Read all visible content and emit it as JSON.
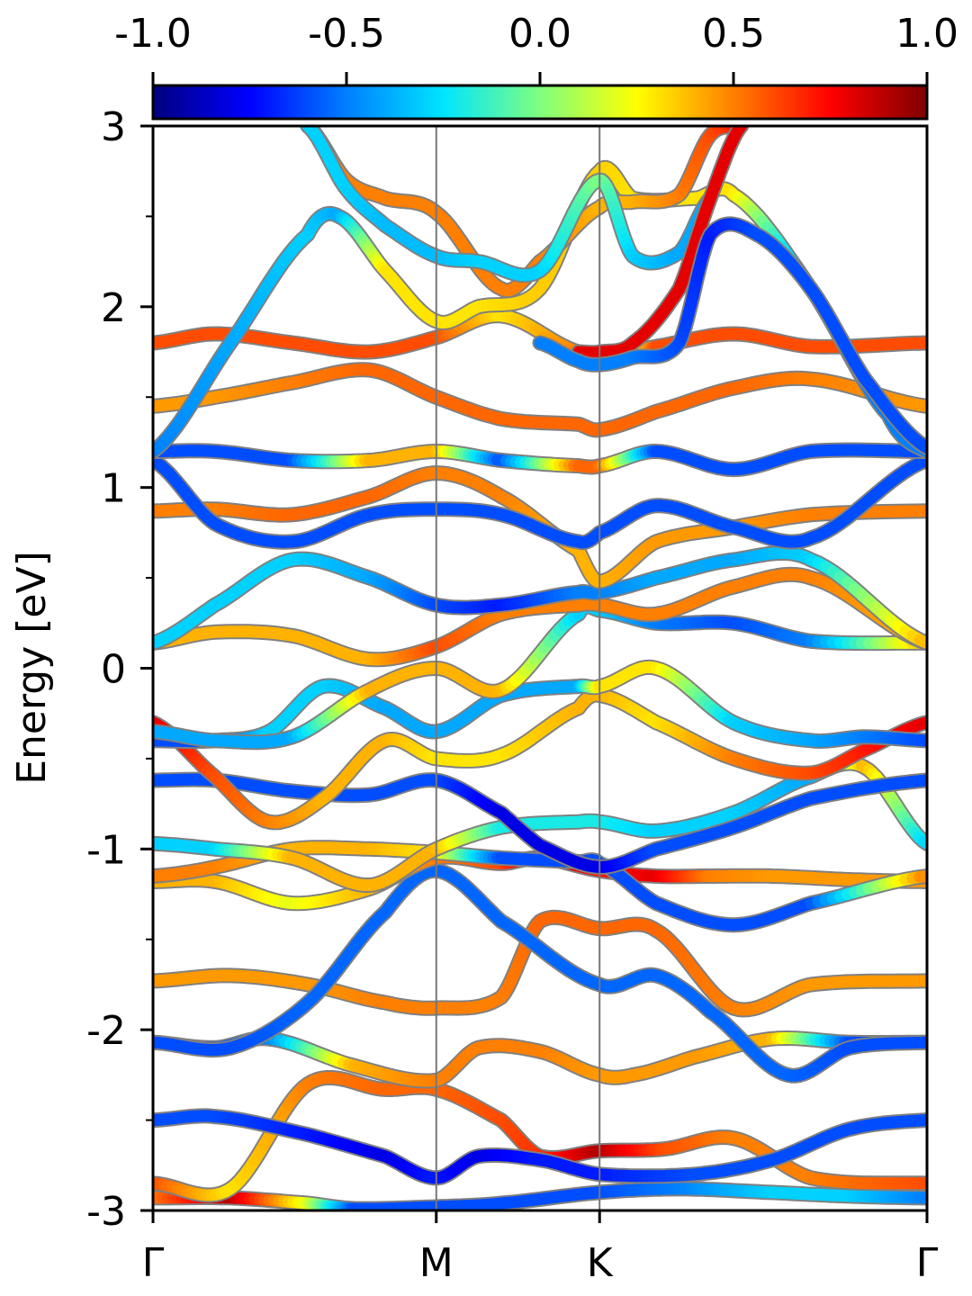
{
  "chart_data": {
    "type": "line",
    "ylabel": "Energy [eV]",
    "xlabel": "",
    "ylim": [
      -3,
      3
    ],
    "yticks": [
      {
        "value": 3,
        "label": "3"
      },
      {
        "value": 2,
        "label": "2"
      },
      {
        "value": 1,
        "label": "1"
      },
      {
        "value": 0,
        "label": "0"
      },
      {
        "value": -1,
        "label": "-1"
      },
      {
        "value": -2,
        "label": "-2"
      },
      {
        "value": -3,
        "label": "-3"
      }
    ],
    "kpath": [
      {
        "label": "Γ",
        "pos": 0.0
      },
      {
        "label": "M",
        "pos": 0.366
      },
      {
        "label": "K",
        "pos": 0.577
      },
      {
        "label": "Γ",
        "pos": 1.0
      }
    ],
    "colorbar": {
      "colormap": "jet",
      "range": [
        -1.0,
        1.0
      ],
      "ticks": [
        {
          "value": -1.0,
          "label": "-1.0"
        },
        {
          "value": -0.5,
          "label": "-0.5"
        },
        {
          "value": 0.0,
          "label": "0.0"
        },
        {
          "value": 0.5,
          "label": "0.5"
        },
        {
          "value": 1.0,
          "label": "1.0"
        }
      ],
      "stops": [
        "#00007f",
        "#0000ff",
        "#007fff",
        "#00e5ff",
        "#7fff7f",
        "#ffff00",
        "#ff7f00",
        "#ff0000",
        "#7f0000"
      ]
    },
    "series": [
      {
        "x": [
          0,
          0.1,
          0.2,
          0.26,
          0.366,
          0.45,
          0.577,
          0.68,
          0.8,
          0.9,
          1.0
        ],
        "y": [
          -2.93,
          -2.93,
          -2.96,
          -2.99,
          -2.98,
          -2.96,
          -2.9,
          -2.88,
          -2.9,
          -2.92,
          -2.93
        ],
        "w": [
          0.5,
          0.9,
          0.2,
          -0.6,
          -0.6,
          -0.6,
          -0.6,
          -0.5,
          -0.3,
          -0.3,
          -0.5
        ]
      },
      {
        "x": [
          0,
          0.1,
          0.2,
          0.3,
          0.366,
          0.45,
          0.5,
          0.577,
          0.66,
          0.75,
          0.85,
          1.0
        ],
        "y": [
          -2.85,
          -2.88,
          -2.3,
          -2.33,
          -2.33,
          -2.5,
          -2.7,
          -2.67,
          -2.66,
          -2.6,
          -2.82,
          -2.85
        ],
        "w": [
          0.6,
          0.3,
          0.5,
          0.55,
          0.55,
          0.6,
          0.65,
          0.9,
          0.6,
          0.5,
          0.5,
          0.6
        ]
      },
      {
        "x": [
          0,
          0.08,
          0.2,
          0.3,
          0.366,
          0.42,
          0.5,
          0.577,
          0.7,
          0.8,
          0.9,
          1.0
        ],
        "y": [
          -2.5,
          -2.48,
          -2.58,
          -2.7,
          -2.82,
          -2.7,
          -2.72,
          -2.8,
          -2.8,
          -2.72,
          -2.55,
          -2.5
        ],
        "w": [
          -0.6,
          -0.6,
          -0.7,
          -0.8,
          -0.7,
          -0.8,
          -0.7,
          -0.7,
          -0.6,
          -0.6,
          -0.6,
          -0.6
        ]
      },
      {
        "x": [
          0,
          0.08,
          0.15,
          0.26,
          0.366,
          0.42,
          0.5,
          0.577,
          0.62,
          0.7,
          0.8,
          0.9,
          1.0
        ],
        "y": [
          -2.07,
          -2.1,
          -2.05,
          -2.2,
          -2.28,
          -2.1,
          -2.12,
          -2.25,
          -2.25,
          -2.15,
          -2.05,
          -2.07,
          -2.07
        ],
        "w": [
          -0.6,
          -0.6,
          -0.5,
          0.4,
          0.5,
          0.5,
          0.5,
          0.45,
          0.45,
          0.45,
          0.4,
          -0.6,
          -0.6
        ]
      },
      {
        "x": [
          0,
          0.1,
          0.2,
          0.3,
          0.366,
          0.45,
          0.5,
          0.577,
          0.65,
          0.75,
          0.85,
          1.0
        ],
        "y": [
          -1.73,
          -1.7,
          -1.75,
          -1.85,
          -1.88,
          -1.82,
          -1.4,
          -1.44,
          -1.45,
          -1.88,
          -1.75,
          -1.73
        ],
        "w": [
          0.45,
          0.45,
          0.45,
          0.5,
          0.5,
          0.5,
          0.55,
          0.55,
          0.55,
          0.5,
          0.45,
          0.45
        ]
      },
      {
        "x": [
          0,
          0.1,
          0.2,
          0.3,
          0.366,
          0.45,
          0.577,
          0.65,
          0.72,
          0.82,
          0.9,
          1.0
        ],
        "y": [
          -2.07,
          -2.1,
          -1.85,
          -1.35,
          -1.12,
          -1.4,
          -1.75,
          -1.7,
          -1.9,
          -2.25,
          -2.1,
          -2.07
        ],
        "w": [
          -0.6,
          -0.6,
          -0.55,
          -0.55,
          -0.55,
          -0.55,
          -0.55,
          -0.55,
          -0.55,
          -0.55,
          -0.6,
          -0.6
        ]
      },
      {
        "x": [
          0,
          0.08,
          0.18,
          0.28,
          0.366,
          0.45,
          0.5,
          0.577,
          0.65,
          0.72,
          0.8,
          0.9,
          1.0
        ],
        "y": [
          -1.18,
          -1.18,
          -1.3,
          -1.22,
          -1.05,
          -1.08,
          -1.05,
          -1.12,
          -1.15,
          -1.15,
          -1.15,
          -1.17,
          -1.18
        ],
        "w": [
          0.4,
          0.4,
          0.2,
          0.4,
          0.5,
          0.6,
          0.9,
          0.7,
          0.8,
          0.5,
          0.45,
          0.45,
          0.45
        ]
      },
      {
        "x": [
          0,
          0.08,
          0.18,
          0.28,
          0.366,
          0.45,
          0.55,
          0.577,
          0.65,
          0.75,
          0.85,
          1.0
        ],
        "y": [
          -1.15,
          -1.1,
          -1.0,
          -1.0,
          -1.02,
          -1.05,
          -1.07,
          -1.08,
          -1.3,
          -1.42,
          -1.3,
          -1.15
        ],
        "w": [
          0.5,
          0.5,
          0.4,
          0.4,
          0.3,
          -0.6,
          -0.6,
          -0.6,
          -0.6,
          -0.6,
          -0.6,
          0.5
        ]
      },
      {
        "x": [
          0,
          0.08,
          0.18,
          0.28,
          0.366,
          0.45,
          0.55,
          0.577,
          0.65,
          0.75,
          0.85,
          0.92,
          1.0
        ],
        "y": [
          -0.97,
          -1.0,
          -1.05,
          -1.2,
          -1.0,
          -0.88,
          -0.85,
          -0.85,
          -0.9,
          -0.8,
          -0.6,
          -0.55,
          -0.97
        ],
        "w": [
          -0.3,
          -0.3,
          0.4,
          0.4,
          0.4,
          -0.2,
          -0.2,
          -0.2,
          -0.3,
          -0.3,
          -0.4,
          0.4,
          -0.3
        ]
      },
      {
        "x": [
          0,
          0.08,
          0.18,
          0.28,
          0.366,
          0.45,
          0.5,
          0.577,
          0.65,
          0.75,
          0.85,
          1.0
        ],
        "y": [
          -0.62,
          -0.62,
          -0.68,
          -0.7,
          -0.62,
          -0.8,
          -0.98,
          -1.1,
          -1.0,
          -0.88,
          -0.72,
          -0.62
        ],
        "w": [
          -0.6,
          -0.6,
          -0.6,
          -0.6,
          -0.6,
          -0.8,
          -0.8,
          -0.8,
          -0.6,
          -0.6,
          -0.6,
          -0.6
        ]
      },
      {
        "x": [
          0,
          0.08,
          0.15,
          0.22,
          0.3,
          0.366,
          0.45,
          0.55,
          0.577,
          0.65,
          0.75,
          0.85,
          0.92,
          1.0
        ],
        "y": [
          -0.3,
          -0.6,
          -0.85,
          -0.72,
          -0.4,
          -0.5,
          -0.48,
          -0.22,
          -0.15,
          -0.3,
          -0.5,
          -0.58,
          -0.45,
          -0.3
        ],
        "w": [
          0.8,
          0.6,
          0.5,
          0.4,
          0.4,
          0.3,
          0.3,
          0.4,
          0.4,
          0.3,
          0.5,
          0.6,
          0.7,
          0.8
        ]
      },
      {
        "x": [
          0,
          0.08,
          0.15,
          0.22,
          0.3,
          0.366,
          0.45,
          0.55,
          0.577,
          0.65,
          0.75,
          0.85,
          0.92,
          1.0
        ],
        "y": [
          -0.4,
          -0.4,
          -0.35,
          -0.1,
          -0.22,
          -0.35,
          -0.15,
          -0.1,
          -0.1,
          0.0,
          -0.3,
          -0.4,
          -0.38,
          -0.4
        ],
        "w": [
          -0.6,
          -0.6,
          -0.3,
          -0.3,
          -0.4,
          -0.4,
          -0.4,
          -0.4,
          0.3,
          0.3,
          -0.3,
          -0.4,
          -0.5,
          -0.6
        ]
      },
      {
        "x": [
          0,
          0.08,
          0.18,
          0.28,
          0.366,
          0.45,
          0.55,
          0.577,
          0.65,
          0.75,
          0.85,
          1.0
        ],
        "y": [
          -0.35,
          -0.4,
          -0.38,
          -0.12,
          0.0,
          -0.12,
          0.3,
          0.32,
          0.25,
          0.25,
          0.15,
          0.14
        ],
        "w": [
          -0.4,
          -0.4,
          -0.4,
          0.4,
          0.4,
          0.4,
          -0.3,
          -0.3,
          -0.5,
          -0.6,
          -0.5,
          0.4
        ]
      },
      {
        "x": [
          0,
          0.08,
          0.18,
          0.28,
          0.366,
          0.45,
          0.55,
          0.577,
          0.65,
          0.75,
          0.85,
          1.0
        ],
        "y": [
          0.14,
          0.2,
          0.18,
          0.05,
          0.12,
          0.3,
          0.35,
          0.35,
          0.3,
          0.45,
          0.5,
          0.14
        ],
        "w": [
          0.4,
          0.4,
          0.4,
          0.4,
          0.6,
          0.5,
          0.5,
          0.5,
          0.5,
          0.5,
          0.5,
          0.4
        ]
      },
      {
        "x": [
          0,
          0.08,
          0.18,
          0.28,
          0.366,
          0.45,
          0.55,
          0.577,
          0.65,
          0.75,
          0.85,
          1.0
        ],
        "y": [
          0.14,
          0.35,
          0.6,
          0.5,
          0.35,
          0.35,
          0.42,
          0.42,
          0.5,
          0.6,
          0.6,
          0.14
        ],
        "w": [
          -0.3,
          -0.3,
          -0.3,
          -0.4,
          -0.6,
          -0.7,
          -0.5,
          -0.5,
          -0.4,
          -0.4,
          -0.3,
          0.4
        ]
      },
      {
        "x": [
          0,
          0.08,
          0.18,
          0.28,
          0.366,
          0.45,
          0.55,
          0.577,
          0.65,
          0.75,
          0.85,
          1.0
        ],
        "y": [
          0.87,
          0.88,
          0.85,
          0.95,
          1.08,
          0.95,
          0.65,
          0.48,
          0.7,
          0.78,
          0.85,
          0.87
        ],
        "w": [
          0.5,
          0.5,
          0.55,
          0.55,
          0.5,
          0.5,
          0.4,
          0.4,
          0.45,
          0.45,
          0.5,
          0.5
        ]
      },
      {
        "x": [
          0,
          0.08,
          0.18,
          0.28,
          0.366,
          0.45,
          0.55,
          0.577,
          0.65,
          0.75,
          0.85,
          1.0
        ],
        "y": [
          1.15,
          0.8,
          0.7,
          0.85,
          0.88,
          0.85,
          0.7,
          0.75,
          0.9,
          0.78,
          0.72,
          1.15
        ],
        "w": [
          -0.6,
          -0.6,
          -0.6,
          -0.6,
          -0.6,
          -0.6,
          -0.6,
          -0.6,
          -0.6,
          -0.6,
          -0.6,
          -0.6
        ]
      },
      {
        "x": [
          0,
          0.08,
          0.18,
          0.28,
          0.366,
          0.45,
          0.55,
          0.577,
          0.65,
          0.75,
          0.85,
          1.0
        ],
        "y": [
          1.2,
          1.2,
          1.15,
          1.15,
          1.2,
          1.15,
          1.12,
          1.12,
          1.2,
          1.1,
          1.2,
          1.2
        ],
        "w": [
          -0.6,
          -0.6,
          -0.6,
          0.4,
          0.4,
          -0.6,
          0.55,
          0.55,
          -0.6,
          -0.6,
          -0.6,
          -0.6
        ]
      },
      {
        "x": [
          0,
          0.08,
          0.18,
          0.28,
          0.366,
          0.45,
          0.55,
          0.577,
          0.65,
          0.75,
          0.85,
          1.0
        ],
        "y": [
          1.45,
          1.5,
          1.58,
          1.65,
          1.5,
          1.38,
          1.35,
          1.32,
          1.42,
          1.55,
          1.6,
          1.45
        ],
        "w": [
          0.45,
          0.45,
          0.5,
          0.55,
          0.55,
          0.55,
          0.55,
          0.55,
          0.55,
          0.55,
          0.5,
          0.45
        ]
      },
      {
        "x": [
          0,
          0.08,
          0.18,
          0.28,
          0.366,
          0.45,
          0.55,
          0.577,
          0.65,
          0.75,
          0.85,
          1.0
        ],
        "y": [
          1.8,
          1.85,
          1.8,
          1.75,
          1.83,
          1.95,
          1.75,
          1.72,
          1.78,
          1.85,
          1.78,
          1.8
        ],
        "w": [
          0.6,
          0.6,
          0.6,
          0.6,
          0.6,
          0.3,
          0.5,
          -0.5,
          0.6,
          0.6,
          0.6,
          0.6
        ]
      },
      {
        "x": [
          0,
          0.1,
          0.2,
          0.24,
          0.3,
          0.366,
          0.42,
          0.5,
          0.577,
          0.62,
          0.7,
          0.75,
          0.85,
          0.95,
          1.0
        ],
        "y": [
          1.2,
          1.8,
          2.4,
          2.5,
          2.2,
          1.92,
          2.0,
          2.1,
          2.75,
          2.6,
          2.6,
          2.62,
          2.1,
          1.4,
          1.2
        ],
        "w": [
          -0.5,
          -0.4,
          -0.3,
          -0.4,
          0.3,
          0.3,
          0.3,
          0.35,
          0.35,
          0.3,
          0.3,
          0.3,
          -0.5,
          -0.5,
          -0.5
        ]
      },
      {
        "x": [
          0.2,
          0.25,
          0.3,
          0.366,
          0.45,
          0.5,
          0.577,
          0.62,
          0.68,
          0.72,
          0.76
        ],
        "y": [
          3.0,
          2.7,
          2.6,
          2.52,
          2.1,
          2.25,
          2.55,
          2.58,
          2.62,
          2.95,
          3.0
        ],
        "w": [
          0.5,
          0.5,
          0.5,
          0.5,
          0.5,
          0.5,
          0.4,
          0.4,
          0.5,
          0.6,
          0.7
        ]
      },
      {
        "x": [
          0.2,
          0.25,
          0.3,
          0.366,
          0.42,
          0.5,
          0.577,
          0.62,
          0.68,
          0.72
        ],
        "y": [
          3.0,
          2.65,
          2.45,
          2.28,
          2.25,
          2.2,
          2.7,
          2.28,
          2.3,
          2.6
        ],
        "w": [
          -0.3,
          -0.3,
          -0.35,
          -0.35,
          -0.3,
          -0.3,
          0.0,
          -0.3,
          -0.4,
          -0.4
        ]
      },
      {
        "x": [
          0.55,
          0.577,
          0.62,
          0.68,
          0.72,
          0.76
        ],
        "y": [
          1.75,
          1.75,
          1.8,
          2.1,
          2.6,
          3.0
        ],
        "w": [
          0.8,
          0.8,
          0.8,
          0.8,
          0.8,
          0.8
        ]
      },
      {
        "x": [
          0.5,
          0.55,
          0.577,
          0.62,
          0.68,
          0.72,
          0.78,
          0.85,
          0.92,
          1.0
        ],
        "y": [
          1.8,
          1.7,
          1.68,
          1.72,
          1.8,
          2.4,
          2.4,
          2.1,
          1.6,
          1.22
        ],
        "w": [
          -0.5,
          -0.5,
          -0.5,
          -0.5,
          -0.6,
          -0.7,
          -0.6,
          -0.6,
          -0.6,
          -0.6
        ]
      }
    ]
  }
}
